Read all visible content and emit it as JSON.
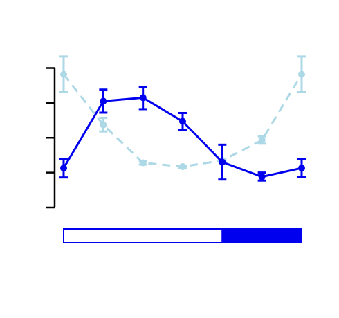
{
  "chart_data": {
    "type": "line",
    "x": [
      1,
      2,
      3,
      4,
      5,
      6,
      7
    ],
    "ylim": [
      0,
      4
    ],
    "xlim": [
      1,
      7
    ],
    "y_ticks": [
      0,
      1,
      2,
      3,
      4
    ],
    "series": [
      {
        "color": "#0000ee",
        "style": "solid",
        "values": [
          1.13,
          3.05,
          3.15,
          2.47,
          1.3,
          0.88,
          1.13
        ],
        "err_low": [
          0.86,
          2.72,
          2.82,
          2.23,
          0.8,
          0.77,
          0.87
        ],
        "err_high": [
          1.38,
          3.38,
          3.46,
          2.71,
          1.8,
          1.0,
          1.38
        ]
      },
      {
        "color": "#add8e6",
        "style": "dashed",
        "values": [
          3.82,
          2.37,
          1.28,
          1.17,
          1.35,
          1.93,
          3.82
        ],
        "err_low": [
          3.32,
          2.18,
          1.23,
          1.14,
          1.31,
          1.83,
          3.32
        ],
        "err_high": [
          4.33,
          2.57,
          1.32,
          1.2,
          1.39,
          2.04,
          4.33
        ]
      }
    ],
    "phase_bar": {
      "x_start": 1,
      "x_split": 5,
      "x_end": 7,
      "left_fill": "#ffffff",
      "right_fill": "#0000ee",
      "border": "#0000ee"
    }
  }
}
